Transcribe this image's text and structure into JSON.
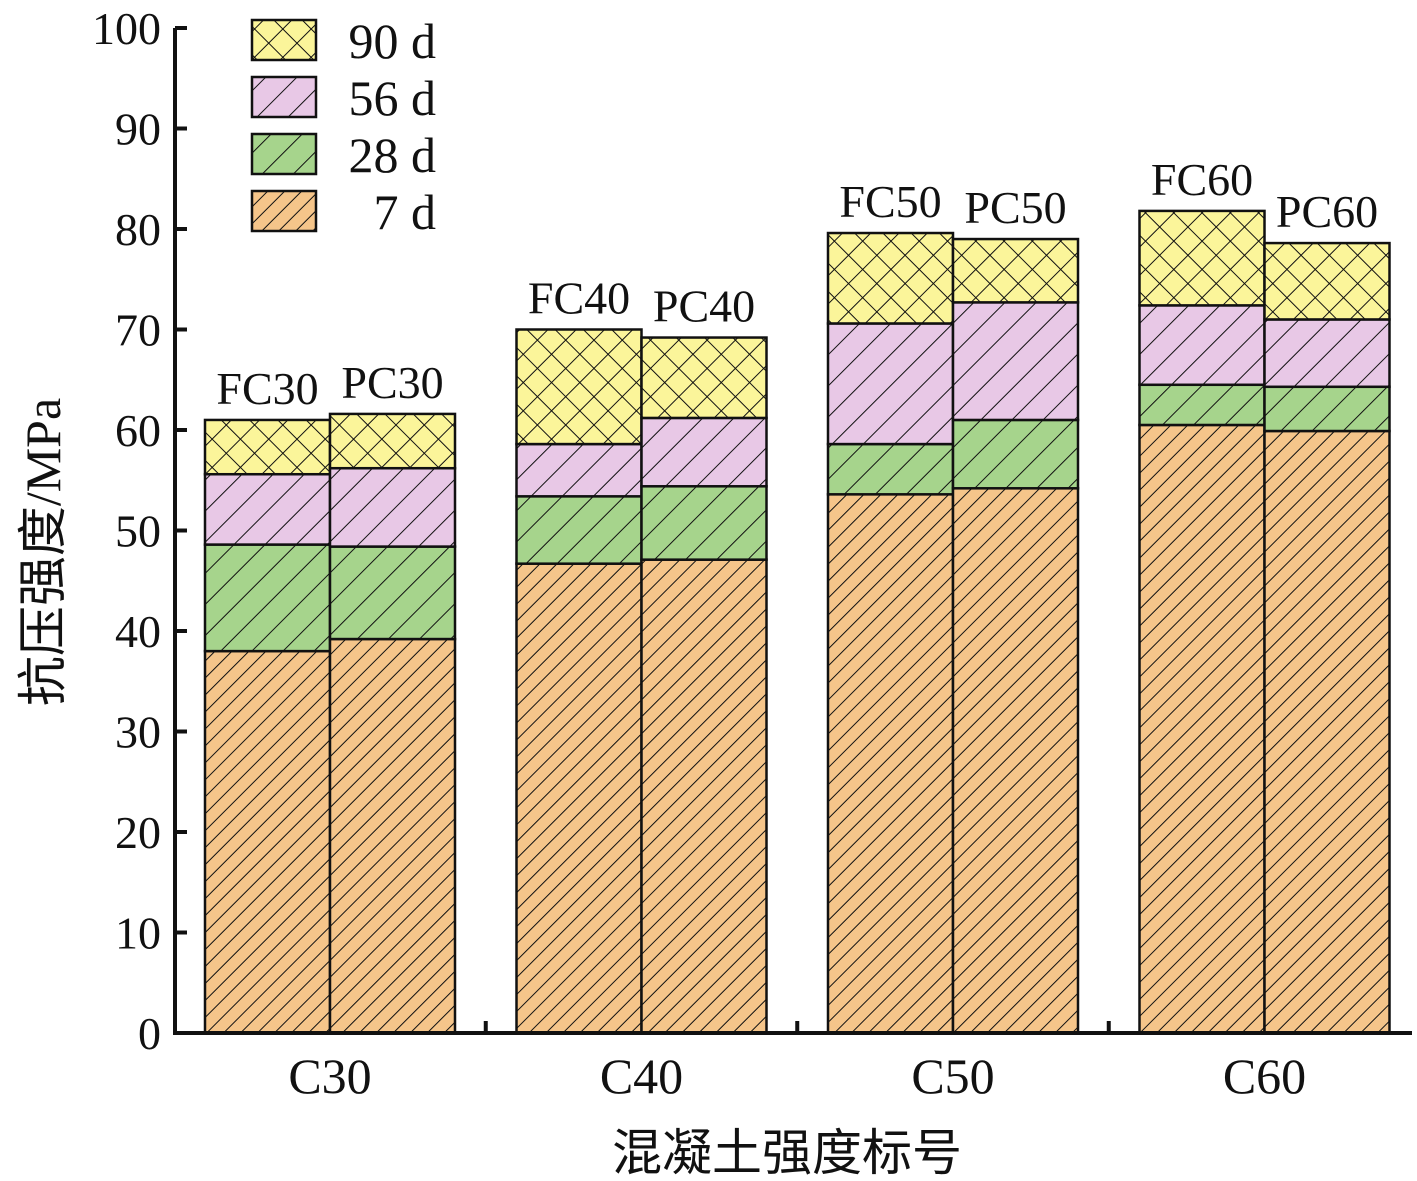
{
  "chart_data": {
    "type": "bar",
    "stacked": true,
    "ylabel": "抗压强度/MPa",
    "xlabel": "混凝土强度标号",
    "ylim": [
      0,
      100
    ],
    "yticks": [
      0,
      10,
      20,
      30,
      40,
      50,
      60,
      70,
      80,
      90,
      100
    ],
    "groups": [
      "C30",
      "C40",
      "C50",
      "C60"
    ],
    "bar_labels": [
      "FC30",
      "PC30",
      "FC40",
      "PC40",
      "FC50",
      "PC50",
      "FC60",
      "PC60"
    ],
    "legend_position": "top-left",
    "series": [
      {
        "name": "7 d",
        "color": "#f5c58a",
        "pattern": "diag-fine",
        "cumulative": [
          38.0,
          39.2,
          46.7,
          47.1,
          53.6,
          54.2,
          60.5,
          59.9
        ]
      },
      {
        "name": "28 d",
        "color": "#a6d48c",
        "pattern": "diag-wide",
        "cumulative": [
          48.6,
          48.4,
          53.4,
          54.4,
          58.6,
          61.0,
          64.5,
          64.3
        ]
      },
      {
        "name": "56 d",
        "color": "#e8c8e6",
        "pattern": "diag-wide",
        "cumulative": [
          55.6,
          56.2,
          58.6,
          61.2,
          70.6,
          72.7,
          72.4,
          71.0
        ]
      },
      {
        "name": "90 d",
        "color": "#fbf59a",
        "pattern": "cross",
        "cumulative": [
          61.0,
          61.6,
          70.0,
          69.2,
          79.6,
          79.0,
          81.8,
          78.6
        ]
      }
    ],
    "legend_order": [
      "90 d",
      "56 d",
      "28 d",
      "7 d"
    ]
  }
}
